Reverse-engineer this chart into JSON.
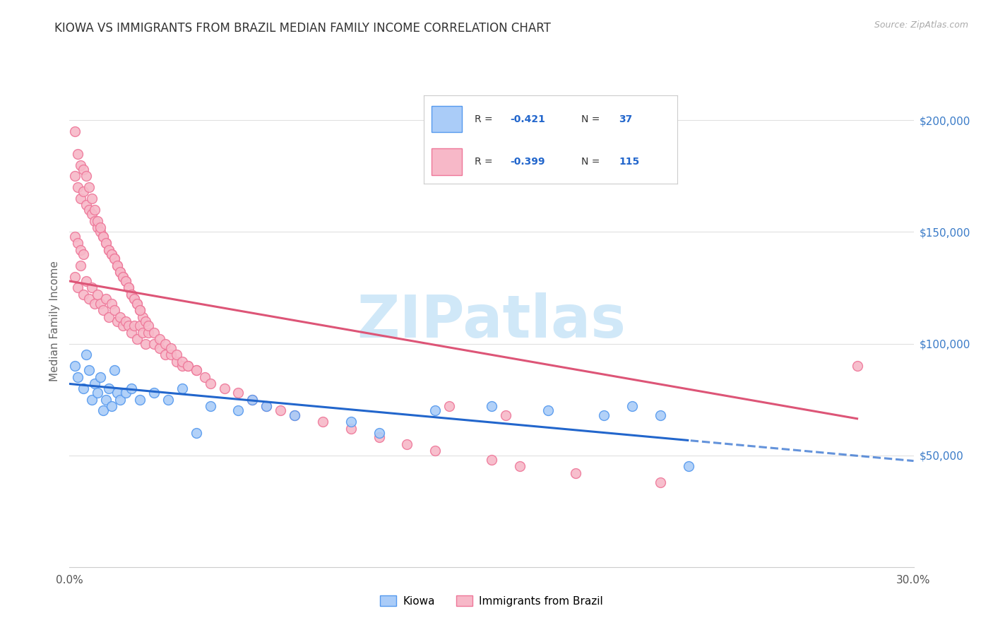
{
  "title": "KIOWA VS IMMIGRANTS FROM BRAZIL MEDIAN FAMILY INCOME CORRELATION CHART",
  "source": "Source: ZipAtlas.com",
  "ylabel": "Median Family Income",
  "xlim": [
    0.0,
    0.3
  ],
  "ylim": [
    0,
    220000
  ],
  "xticks": [
    0.0,
    0.05,
    0.1,
    0.15,
    0.2,
    0.25,
    0.3
  ],
  "ytick_positions": [
    50000,
    100000,
    150000,
    200000
  ],
  "ytick_labels": [
    "$50,000",
    "$100,000",
    "$150,000",
    "$200,000"
  ],
  "kiowa_color": "#aaccf8",
  "brazil_color": "#f7b8c8",
  "kiowa_edge": "#5599ee",
  "brazil_edge": "#ee7799",
  "line_blue": "#2266cc",
  "line_pink": "#dd5577",
  "watermark_color": "#d0e8f8",
  "kiowa_line_intercept": 82000,
  "kiowa_line_slope": -115000,
  "brazil_line_intercept": 128000,
  "brazil_line_slope": -220000,
  "kiowa_x": [
    0.002,
    0.003,
    0.005,
    0.006,
    0.007,
    0.008,
    0.009,
    0.01,
    0.011,
    0.012,
    0.013,
    0.014,
    0.015,
    0.016,
    0.017,
    0.018,
    0.02,
    0.022,
    0.025,
    0.03,
    0.035,
    0.04,
    0.045,
    0.05,
    0.06,
    0.065,
    0.07,
    0.08,
    0.1,
    0.11,
    0.13,
    0.15,
    0.17,
    0.19,
    0.2,
    0.21,
    0.22
  ],
  "kiowa_y": [
    90000,
    85000,
    80000,
    95000,
    88000,
    75000,
    82000,
    78000,
    85000,
    70000,
    75000,
    80000,
    72000,
    88000,
    78000,
    75000,
    78000,
    80000,
    75000,
    78000,
    75000,
    80000,
    60000,
    72000,
    70000,
    75000,
    72000,
    68000,
    65000,
    60000,
    70000,
    72000,
    70000,
    68000,
    72000,
    68000,
    45000
  ],
  "brazil_x": [
    0.002,
    0.003,
    0.004,
    0.005,
    0.006,
    0.007,
    0.008,
    0.009,
    0.01,
    0.011,
    0.012,
    0.013,
    0.014,
    0.015,
    0.016,
    0.017,
    0.018,
    0.019,
    0.02,
    0.021,
    0.022,
    0.023,
    0.024,
    0.025,
    0.026,
    0.027,
    0.028,
    0.03,
    0.032,
    0.034,
    0.036,
    0.038,
    0.04,
    0.042,
    0.045,
    0.048,
    0.05,
    0.055,
    0.06,
    0.065,
    0.07,
    0.075,
    0.08,
    0.09,
    0.1,
    0.11,
    0.12,
    0.13,
    0.15,
    0.16,
    0.18,
    0.21,
    0.28,
    0.002,
    0.003,
    0.004,
    0.005,
    0.006,
    0.007,
    0.008,
    0.009,
    0.01,
    0.011,
    0.012,
    0.013,
    0.014,
    0.015,
    0.016,
    0.017,
    0.018,
    0.019,
    0.02,
    0.021,
    0.022,
    0.023,
    0.024,
    0.025,
    0.026,
    0.027,
    0.028,
    0.03,
    0.032,
    0.034,
    0.036,
    0.038,
    0.04,
    0.042,
    0.045,
    0.002,
    0.003,
    0.004,
    0.005,
    0.006,
    0.007,
    0.008,
    0.009,
    0.01,
    0.011,
    0.012,
    0.013,
    0.014,
    0.015,
    0.016,
    0.017,
    0.018,
    0.019,
    0.02,
    0.021,
    0.022,
    0.023,
    0.024,
    0.025,
    0.002,
    0.003,
    0.004,
    0.005,
    0.135,
    0.155
  ],
  "brazil_y": [
    130000,
    125000,
    135000,
    122000,
    128000,
    120000,
    125000,
    118000,
    122000,
    118000,
    115000,
    120000,
    112000,
    118000,
    115000,
    110000,
    112000,
    108000,
    110000,
    108000,
    105000,
    108000,
    102000,
    108000,
    105000,
    100000,
    105000,
    100000,
    98000,
    95000,
    95000,
    92000,
    90000,
    90000,
    88000,
    85000,
    82000,
    80000,
    78000,
    75000,
    72000,
    70000,
    68000,
    65000,
    62000,
    58000,
    55000,
    52000,
    48000,
    45000,
    42000,
    38000,
    90000,
    175000,
    170000,
    165000,
    168000,
    162000,
    160000,
    158000,
    155000,
    152000,
    150000,
    148000,
    145000,
    142000,
    140000,
    138000,
    135000,
    132000,
    130000,
    128000,
    125000,
    122000,
    120000,
    118000,
    115000,
    112000,
    110000,
    108000,
    105000,
    102000,
    100000,
    98000,
    95000,
    92000,
    90000,
    88000,
    195000,
    185000,
    180000,
    178000,
    175000,
    170000,
    165000,
    160000,
    155000,
    152000,
    148000,
    145000,
    142000,
    140000,
    138000,
    135000,
    132000,
    130000,
    128000,
    125000,
    122000,
    120000,
    118000,
    115000,
    148000,
    145000,
    142000,
    140000,
    72000,
    68000
  ]
}
